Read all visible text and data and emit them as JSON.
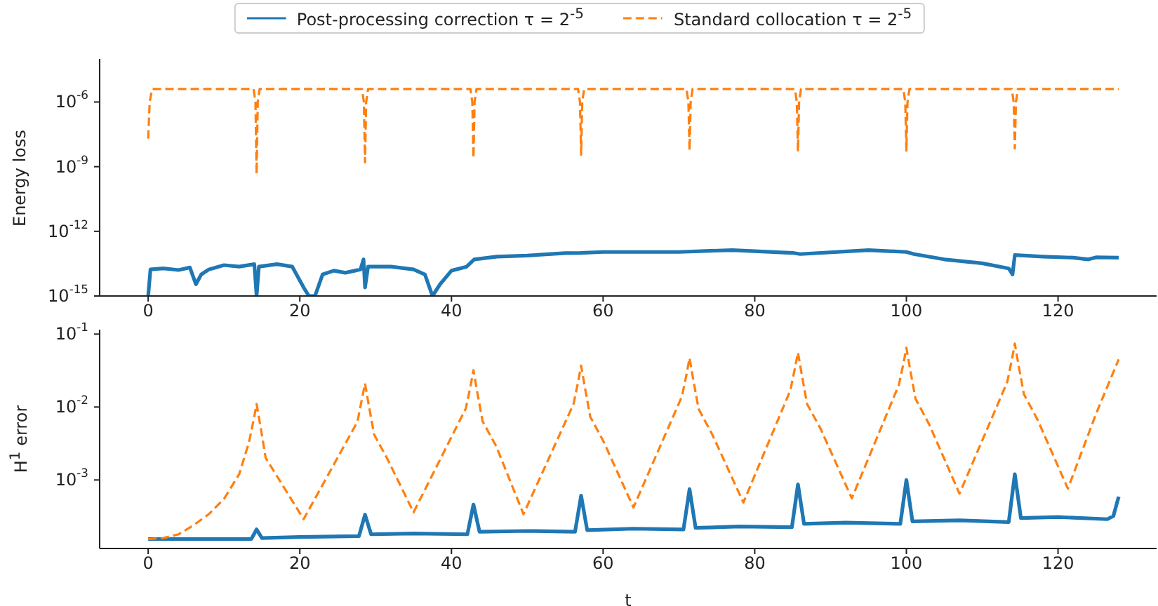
{
  "chart_data": [
    {
      "type": "line",
      "ylabel": "Energy loss",
      "log": "y",
      "legend": "top",
      "xlim": [
        -6.4,
        133
      ],
      "xticks": [
        0,
        20,
        40,
        60,
        80,
        100,
        120
      ],
      "ylim": [
        1e-15,
        0.0001
      ],
      "yticks": [
        {
          "value": 1e-15,
          "label": "10$^{-15}$"
        },
        {
          "value": 1e-12,
          "label": "10$^{-12}$"
        },
        {
          "value": 1e-09,
          "label": "10$^{-9}$"
        },
        {
          "value": 1e-06,
          "label": "10$^{-6}$"
        }
      ],
      "series": [
        {
          "name": "Post-processing correction τ = 2$^{-5}$",
          "color": "#1f77b4",
          "line_style": "solid",
          "x": [
            0,
            0.3,
            2,
            4,
            5.5,
            6.3,
            7,
            8,
            10,
            12,
            14,
            14.3,
            14.6,
            17,
            19,
            20.5,
            21.2,
            22,
            23,
            24.5,
            26,
            28,
            28.4,
            28.6,
            29,
            32,
            35,
            36.5,
            37.5,
            38.5,
            40,
            42,
            43,
            46,
            50,
            55,
            57,
            60,
            70,
            77,
            85,
            86,
            95,
            100,
            101,
            105,
            110,
            113.5,
            114,
            114.3,
            118,
            122,
            124,
            125,
            128
          ],
          "values": [
            1e-15,
            1.7e-14,
            1.9e-14,
            1.6e-14,
            2.1e-14,
            3.5e-15,
            1e-14,
            1.7e-14,
            2.7e-14,
            2.3e-14,
            3e-14,
            1e-15,
            2.3e-14,
            3e-14,
            2.3e-14,
            2.5e-15,
            1e-15,
            1e-15,
            1e-14,
            1.5e-14,
            1.2e-14,
            1.7e-14,
            5e-14,
            2.5e-15,
            2.3e-14,
            2.3e-14,
            1.7e-14,
            1e-14,
            1e-15,
            3.5e-15,
            1.5e-14,
            2.3e-14,
            5e-14,
            6.7e-14,
            7.5e-14,
            9.8e-14,
            1e-13,
            1.1e-13,
            1.1e-13,
            1.35e-13,
            1e-13,
            8.8e-14,
            1.35e-13,
            1.1e-13,
            8.8e-14,
            5e-14,
            3.3e-14,
            1.9e-14,
            1e-14,
            7.9e-14,
            6.7e-14,
            6e-14,
            5e-14,
            6.2e-14,
            6e-14
          ]
        },
        {
          "name": "Standard collocation τ = 2$^{-5}$",
          "color": "#ff7f0e",
          "line_style": "dashed",
          "x": [
            0,
            0.2,
            0.5,
            13.9,
            14.15,
            14.3,
            14.45,
            14.7,
            28.2,
            28.45,
            28.6,
            28.75,
            29,
            42.5,
            42.75,
            42.9,
            43.05,
            43.3,
            56.7,
            56.95,
            57.1,
            57.25,
            57.5,
            71,
            71.25,
            71.4,
            71.55,
            71.8,
            85.3,
            85.55,
            85.7,
            85.85,
            86.1,
            99.6,
            99.85,
            100,
            100.15,
            100.4,
            113.9,
            114.15,
            114.3,
            114.45,
            114.7,
            128
          ],
          "values": [
            2e-08,
            1e-06,
            4e-06,
            4e-06,
            1e-06,
            4.5e-10,
            1e-06,
            4e-06,
            4e-06,
            1e-06,
            1.6e-09,
            1e-06,
            4e-06,
            4e-06,
            1e-06,
            2.5e-09,
            1e-06,
            4e-06,
            4e-06,
            1e-06,
            3.6e-09,
            1e-06,
            4e-06,
            4e-06,
            1e-06,
            5.6e-09,
            1e-06,
            4e-06,
            4e-06,
            1e-06,
            5e-09,
            1e-06,
            4e-06,
            4e-06,
            1e-06,
            5.6e-09,
            1e-06,
            4e-06,
            4e-06,
            1e-06,
            7e-09,
            1e-06,
            4e-06,
            4e-06
          ]
        }
      ]
    },
    {
      "type": "line",
      "xlabel": "t",
      "ylabel": "H$^{1}$ error",
      "log": "y",
      "xlim": [
        -6.4,
        133
      ],
      "xticks": [
        0,
        20,
        40,
        60,
        80,
        100,
        120
      ],
      "ylim": [
        0.000115,
        0.115
      ],
      "yticks": [
        {
          "value": 0.001,
          "label": "10$^{-3}$"
        },
        {
          "value": 0.01,
          "label": "10$^{-2}$"
        },
        {
          "value": 0.1,
          "label": "10$^{-1}$"
        }
      ],
      "series": [
        {
          "color": "#1f77b4",
          "line_style": "solid",
          "x": [
            0,
            13.6,
            14.3,
            15,
            20,
            27.8,
            28.6,
            29.4,
            35,
            42.1,
            42.9,
            43.7,
            50,
            56.3,
            57.1,
            57.9,
            64,
            70.6,
            71.4,
            72.2,
            78,
            84.9,
            85.7,
            86.5,
            92,
            99.2,
            100,
            100.8,
            107,
            113.5,
            114.3,
            115.1,
            120,
            126.5,
            127.3,
            128
          ],
          "values": [
            0.000155,
            0.000155,
            0.00021,
            0.00016,
            0.000165,
            0.00017,
            0.000335,
            0.00018,
            0.000185,
            0.00018,
            0.00046,
            0.000195,
            0.0002,
            0.000195,
            0.00061,
            0.000205,
            0.000215,
            0.00021,
            0.00075,
            0.00022,
            0.00023,
            0.000225,
            0.00087,
            0.00025,
            0.00026,
            0.00025,
            0.001,
            0.00027,
            0.00028,
            0.000265,
            0.0012,
            0.0003,
            0.00031,
            0.00029,
            0.00032,
            0.00059
          ]
        },
        {
          "color": "#ff7f0e",
          "line_style": "dashed",
          "x": [
            0,
            2,
            4,
            6,
            8,
            10,
            12,
            13.3,
            13.9,
            14.3,
            14.8,
            15.5,
            17.3,
            20.5,
            27.6,
            28.2,
            28.6,
            29.1,
            29.8,
            31.6,
            35,
            41.9,
            42.5,
            42.9,
            43.4,
            44.1,
            45.9,
            49.5,
            56.1,
            56.7,
            57.1,
            57.6,
            58.3,
            60.1,
            64,
            70.4,
            71,
            71.4,
            71.9,
            72.6,
            74.4,
            78.5,
            84.7,
            85.3,
            85.7,
            86.2,
            86.9,
            88.7,
            92.8,
            99,
            99.6,
            100,
            100.5,
            101.2,
            103,
            107,
            113.3,
            113.9,
            114.3,
            114.8,
            115.5,
            117.3,
            121.3,
            125,
            128
          ],
          "values": [
            0.000155,
            0.00016,
            0.00018,
            0.00024,
            0.00034,
            0.00055,
            0.0012,
            0.0033,
            0.0066,
            0.011,
            0.0055,
            0.002,
            0.001,
            0.00029,
            0.0063,
            0.013,
            0.021,
            0.0105,
            0.0042,
            0.0019,
            0.00036,
            0.0096,
            0.019,
            0.032,
            0.016,
            0.0064,
            0.0029,
            0.00034,
            0.011,
            0.022,
            0.037,
            0.0185,
            0.0074,
            0.0033,
            0.00042,
            0.014,
            0.028,
            0.047,
            0.0235,
            0.0094,
            0.0042,
            0.00049,
            0.017,
            0.034,
            0.056,
            0.028,
            0.011,
            0.005,
            0.00056,
            0.02,
            0.039,
            0.065,
            0.0325,
            0.013,
            0.0058,
            0.00065,
            0.022,
            0.044,
            0.074,
            0.037,
            0.015,
            0.0067,
            0.00076,
            0.008,
            0.045
          ]
        }
      ]
    }
  ]
}
